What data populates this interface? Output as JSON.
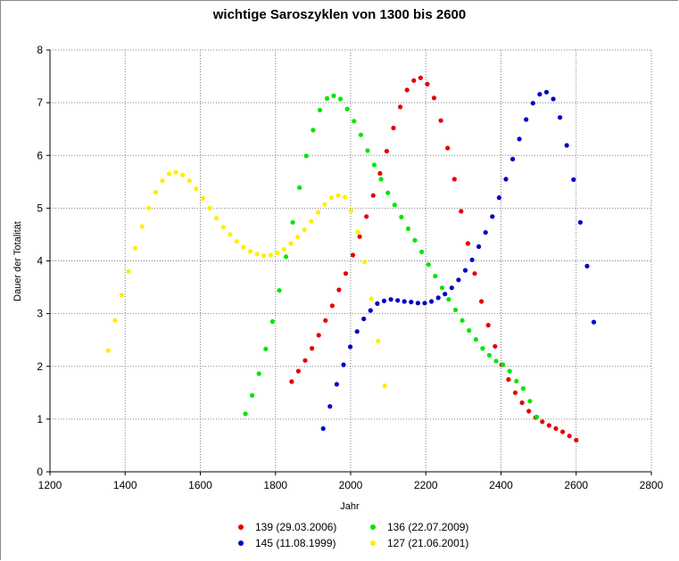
{
  "chart_data": {
    "type": "scatter",
    "title": "wichtige Saroszyklen von 1300 bis 2600",
    "xlabel": "Jahr",
    "ylabel": "Dauer der Totalität",
    "xlim": [
      1200,
      2800
    ],
    "ylim": [
      0,
      8
    ],
    "xticks": [
      1200,
      1400,
      1600,
      1800,
      2000,
      2200,
      2400,
      2600,
      2800
    ],
    "yticks": [
      0,
      1,
      2,
      3,
      4,
      5,
      6,
      7,
      8
    ],
    "grid": true,
    "legend_position": "bottom",
    "series": [
      {
        "name": "139 (29.03.2006)",
        "color": "#e60000",
        "points": [
          [
            1843,
            1.71
          ],
          [
            1861,
            1.91
          ],
          [
            1879,
            2.11
          ],
          [
            1897,
            2.34
          ],
          [
            1915,
            2.59
          ],
          [
            1933,
            2.87
          ],
          [
            1951,
            3.15
          ],
          [
            1969,
            3.45
          ],
          [
            1987,
            3.76
          ],
          [
            2006,
            4.11
          ],
          [
            2024,
            4.46
          ],
          [
            2042,
            4.84
          ],
          [
            2060,
            5.24
          ],
          [
            2078,
            5.66
          ],
          [
            2096,
            6.08
          ],
          [
            2114,
            6.52
          ],
          [
            2132,
            6.92
          ],
          [
            2150,
            7.24
          ],
          [
            2168,
            7.42
          ],
          [
            2186,
            7.47
          ],
          [
            2204,
            7.35
          ],
          [
            2222,
            7.09
          ],
          [
            2240,
            6.66
          ],
          [
            2258,
            6.14
          ],
          [
            2276,
            5.55
          ],
          [
            2294,
            4.94
          ],
          [
            2312,
            4.33
          ],
          [
            2330,
            3.76
          ],
          [
            2348,
            3.23
          ],
          [
            2366,
            2.78
          ],
          [
            2384,
            2.38
          ],
          [
            2402,
            2.03
          ],
          [
            2420,
            1.75
          ],
          [
            2438,
            1.5
          ],
          [
            2456,
            1.31
          ],
          [
            2474,
            1.15
          ],
          [
            2492,
            1.03
          ],
          [
            2510,
            0.95
          ],
          [
            2528,
            0.88
          ],
          [
            2546,
            0.82
          ],
          [
            2564,
            0.76
          ],
          [
            2582,
            0.68
          ],
          [
            2600,
            0.6
          ]
        ]
      },
      {
        "name": "136 (22.07.2009)",
        "color": "#00e600",
        "points": [
          [
            1720,
            1.1
          ],
          [
            1738,
            1.45
          ],
          [
            1756,
            1.86
          ],
          [
            1774,
            2.33
          ],
          [
            1792,
            2.85
          ],
          [
            1810,
            3.44
          ],
          [
            1828,
            4.08
          ],
          [
            1846,
            4.73
          ],
          [
            1864,
            5.39
          ],
          [
            1882,
            5.99
          ],
          [
            1900,
            6.48
          ],
          [
            1918,
            6.86
          ],
          [
            1937,
            7.08
          ],
          [
            1955,
            7.13
          ],
          [
            1973,
            7.07
          ],
          [
            1991,
            6.88
          ],
          [
            2009,
            6.65
          ],
          [
            2027,
            6.39
          ],
          [
            2045,
            6.09
          ],
          [
            2063,
            5.82
          ],
          [
            2081,
            5.55
          ],
          [
            2099,
            5.29
          ],
          [
            2117,
            5.06
          ],
          [
            2135,
            4.83
          ],
          [
            2153,
            4.61
          ],
          [
            2171,
            4.39
          ],
          [
            2189,
            4.17
          ],
          [
            2207,
            3.93
          ],
          [
            2225,
            3.71
          ],
          [
            2243,
            3.49
          ],
          [
            2261,
            3.27
          ],
          [
            2279,
            3.07
          ],
          [
            2297,
            2.87
          ],
          [
            2315,
            2.68
          ],
          [
            2333,
            2.51
          ],
          [
            2351,
            2.34
          ],
          [
            2369,
            2.21
          ],
          [
            2387,
            2.1
          ],
          [
            2405,
            2.03
          ],
          [
            2423,
            1.91
          ],
          [
            2441,
            1.72
          ],
          [
            2459,
            1.58
          ],
          [
            2477,
            1.34
          ],
          [
            2495,
            1.04
          ]
        ]
      },
      {
        "name": "145 (11.08.1999)",
        "color": "#0000c8",
        "points": [
          [
            1927,
            0.82
          ],
          [
            1945,
            1.24
          ],
          [
            1963,
            1.66
          ],
          [
            1981,
            2.03
          ],
          [
            1999,
            2.37
          ],
          [
            2017,
            2.66
          ],
          [
            2035,
            2.9
          ],
          [
            2053,
            3.06
          ],
          [
            2071,
            3.19
          ],
          [
            2089,
            3.24
          ],
          [
            2107,
            3.27
          ],
          [
            2125,
            3.25
          ],
          [
            2143,
            3.23
          ],
          [
            2161,
            3.22
          ],
          [
            2179,
            3.2
          ],
          [
            2197,
            3.2
          ],
          [
            2215,
            3.23
          ],
          [
            2233,
            3.3
          ],
          [
            2251,
            3.37
          ],
          [
            2269,
            3.49
          ],
          [
            2287,
            3.64
          ],
          [
            2305,
            3.82
          ],
          [
            2323,
            4.02
          ],
          [
            2341,
            4.27
          ],
          [
            2359,
            4.54
          ],
          [
            2377,
            4.84
          ],
          [
            2395,
            5.2
          ],
          [
            2413,
            5.55
          ],
          [
            2431,
            5.93
          ],
          [
            2449,
            6.31
          ],
          [
            2467,
            6.68
          ],
          [
            2485,
            6.99
          ],
          [
            2503,
            7.16
          ],
          [
            2521,
            7.2
          ],
          [
            2539,
            7.07
          ],
          [
            2557,
            6.72
          ],
          [
            2575,
            6.19
          ],
          [
            2593,
            5.54
          ],
          [
            2611,
            4.73
          ],
          [
            2629,
            3.9
          ],
          [
            2647,
            2.84
          ]
        ]
      },
      {
        "name": "127 (21.06.2001)",
        "color": "#ffee00",
        "points": [
          [
            1355,
            2.3
          ],
          [
            1373,
            2.87
          ],
          [
            1391,
            3.35
          ],
          [
            1409,
            3.8
          ],
          [
            1427,
            4.24
          ],
          [
            1445,
            4.65
          ],
          [
            1463,
            5.0
          ],
          [
            1481,
            5.3
          ],
          [
            1499,
            5.52
          ],
          [
            1517,
            5.65
          ],
          [
            1535,
            5.68
          ],
          [
            1553,
            5.63
          ],
          [
            1571,
            5.52
          ],
          [
            1589,
            5.37
          ],
          [
            1607,
            5.19
          ],
          [
            1625,
            5.0
          ],
          [
            1643,
            4.81
          ],
          [
            1661,
            4.64
          ],
          [
            1679,
            4.5
          ],
          [
            1697,
            4.37
          ],
          [
            1715,
            4.26
          ],
          [
            1733,
            4.18
          ],
          [
            1751,
            4.13
          ],
          [
            1769,
            4.1
          ],
          [
            1787,
            4.11
          ],
          [
            1805,
            4.15
          ],
          [
            1823,
            4.22
          ],
          [
            1841,
            4.33
          ],
          [
            1859,
            4.45
          ],
          [
            1877,
            4.59
          ],
          [
            1895,
            4.75
          ],
          [
            1913,
            4.92
          ],
          [
            1931,
            5.07
          ],
          [
            1949,
            5.2
          ],
          [
            1967,
            5.24
          ],
          [
            1985,
            5.21
          ],
          [
            2001,
            4.95
          ],
          [
            2019,
            4.55
          ],
          [
            2037,
            3.98
          ],
          [
            2055,
            3.28
          ],
          [
            2073,
            2.48
          ],
          [
            2091,
            1.63
          ]
        ]
      }
    ]
  }
}
